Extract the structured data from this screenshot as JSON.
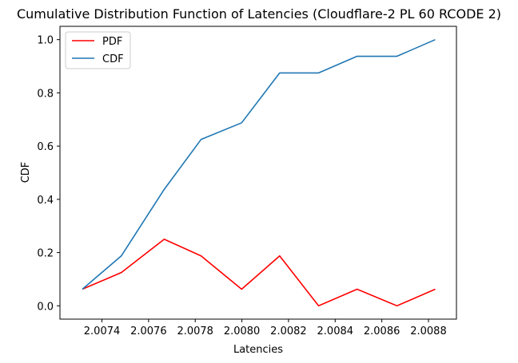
{
  "chart_data": {
    "type": "line",
    "title": "Cumulative Distribution Function of Latencies (Cloudflare-2 PL 60 RCODE 2)",
    "xlabel": "Latencies",
    "ylabel": "CDF",
    "xlim": [
      2.00722,
      2.00892
    ],
    "ylim": [
      -0.05,
      1.05
    ],
    "x": [
      2.007316,
      2.007483,
      2.007667,
      2.007825,
      2.007999,
      2.008162,
      2.008329,
      2.008494,
      2.008665,
      2.008829
    ],
    "series": [
      {
        "name": "PDF",
        "color": "#ff0000",
        "values": [
          0.0625,
          0.125,
          0.25,
          0.1875,
          0.0625,
          0.1875,
          0.0,
          0.0625,
          0.0,
          0.0625
        ]
      },
      {
        "name": "CDF",
        "color": "#1f77b4",
        "values": [
          0.0625,
          0.1875,
          0.4375,
          0.625,
          0.6875,
          0.875,
          0.875,
          0.9375,
          0.9375,
          1.0
        ]
      }
    ],
    "xticks": [
      2.0074,
      2.0076,
      2.0078,
      2.008,
      2.0082,
      2.0084,
      2.0086,
      2.0088
    ],
    "xtick_labels": [
      "2.0074",
      "2.0076",
      "2.0078",
      "2.0080",
      "2.0082",
      "2.0084",
      "2.0086",
      "2.0088"
    ],
    "yticks": [
      0.0,
      0.2,
      0.4,
      0.6,
      0.8,
      1.0
    ],
    "ytick_labels": [
      "0.0",
      "0.2",
      "0.4",
      "0.6",
      "0.8",
      "1.0"
    ],
    "grid": false,
    "legend_position": "top-left"
  }
}
